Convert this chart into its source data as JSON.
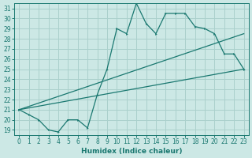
{
  "xlabel": "Humidex (Indice chaleur)",
  "bg_color": "#cce8e5",
  "grid_color": "#aad0cc",
  "line_color": "#1a7870",
  "spine_color": "#1a7870",
  "xlim": [
    -0.5,
    23.5
  ],
  "ylim": [
    18.5,
    31.5
  ],
  "xticks": [
    0,
    1,
    2,
    3,
    4,
    5,
    6,
    7,
    8,
    9,
    10,
    11,
    12,
    13,
    14,
    15,
    16,
    17,
    18,
    19,
    20,
    21,
    22,
    23
  ],
  "yticks": [
    19,
    20,
    21,
    22,
    23,
    24,
    25,
    26,
    27,
    28,
    29,
    30,
    31
  ],
  "line1_x": [
    0,
    1,
    2,
    3,
    4,
    5,
    6,
    7,
    8,
    9,
    10,
    11,
    12,
    13,
    14,
    15,
    16,
    17,
    18,
    19,
    20,
    21,
    22,
    23
  ],
  "line1_y": [
    21.0,
    20.5,
    20.0,
    19.0,
    18.8,
    20.0,
    20.0,
    19.2,
    22.5,
    25.0,
    29.0,
    28.5,
    31.5,
    29.5,
    28.5,
    30.5,
    30.5,
    30.5,
    29.2,
    29.0,
    28.5,
    26.5,
    26.5,
    25.0
  ],
  "line2_x": [
    0,
    23
  ],
  "line2_y": [
    21.0,
    25.0
  ],
  "line3_x": [
    0,
    23
  ],
  "line3_y": [
    21.0,
    28.5
  ],
  "tick_fontsize": 5.5,
  "xlabel_fontsize": 6.5
}
